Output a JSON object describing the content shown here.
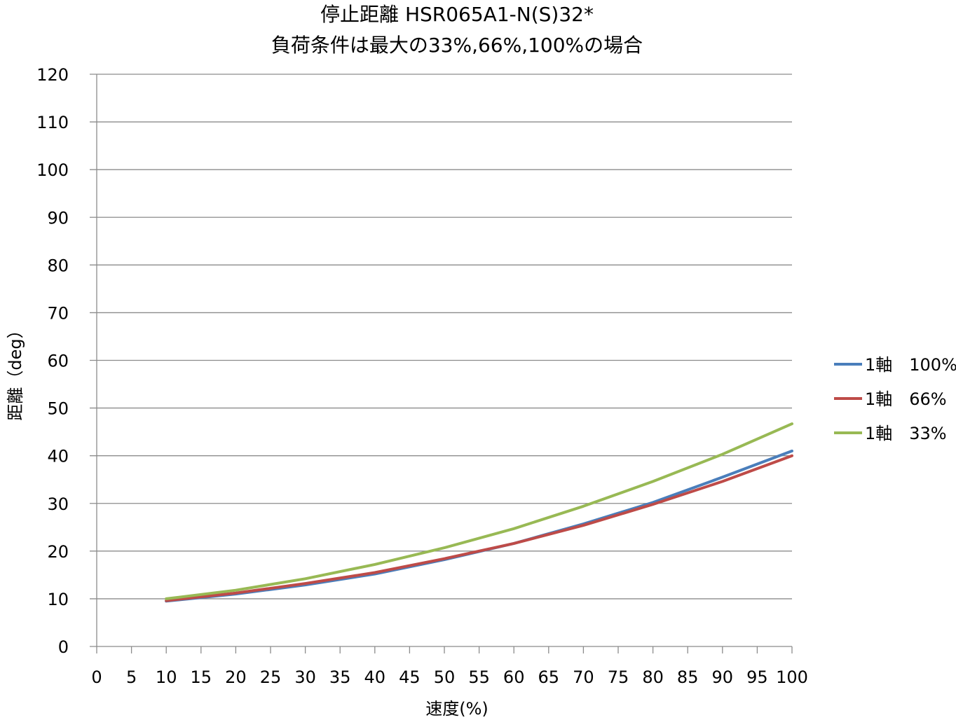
{
  "chart_data": {
    "type": "line",
    "title_line1": "停止距離 HSR065A1-N(S)32*",
    "title_line2": "負荷条件は最大の33%,66%,100%の場合",
    "xlabel": "速度(%)",
    "ylabel": "距離（deg）",
    "xlim": [
      0,
      100
    ],
    "ylim": [
      0,
      120
    ],
    "x_ticks": [
      0,
      5,
      10,
      15,
      20,
      25,
      30,
      35,
      40,
      45,
      50,
      55,
      60,
      65,
      70,
      75,
      80,
      85,
      90,
      95,
      100
    ],
    "y_ticks": [
      0,
      10,
      20,
      30,
      40,
      50,
      60,
      70,
      80,
      90,
      100,
      110,
      120
    ],
    "grid": "horizontal",
    "legend_position": "right",
    "x": [
      10,
      20,
      30,
      40,
      50,
      60,
      70,
      80,
      90,
      100
    ],
    "series": [
      {
        "name": "1軸　100%",
        "color": "#4a7ebb",
        "values": [
          9.5,
          11.0,
          12.9,
          15.2,
          18.2,
          21.6,
          25.7,
          30.2,
          35.5,
          41.0
        ]
      },
      {
        "name": "1軸　66%",
        "color": "#be4b48",
        "values": [
          9.6,
          11.2,
          13.2,
          15.5,
          18.4,
          21.6,
          25.4,
          29.8,
          34.6,
          40.0
        ]
      },
      {
        "name": "1軸　33%",
        "color": "#98b954",
        "values": [
          10.0,
          11.8,
          14.2,
          17.2,
          20.7,
          24.7,
          29.4,
          34.6,
          40.3,
          46.7
        ]
      }
    ]
  }
}
